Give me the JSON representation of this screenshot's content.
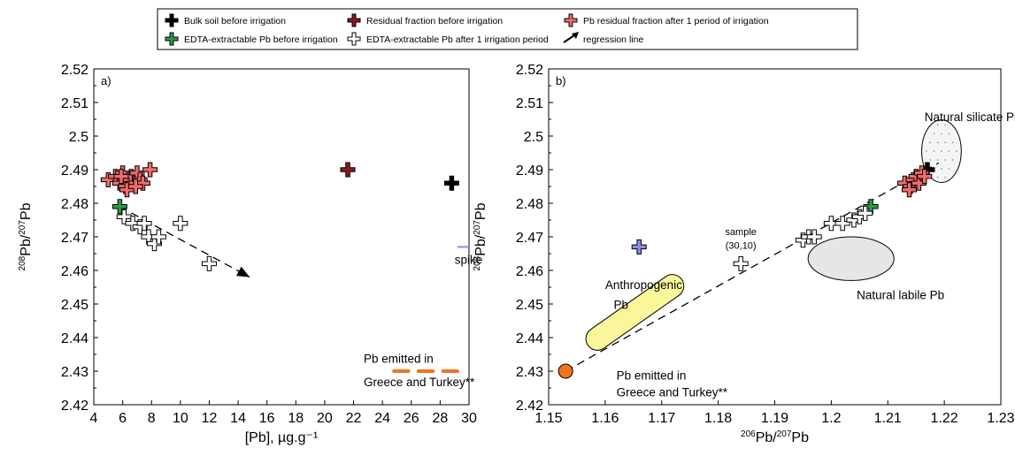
{
  "legend": {
    "items": [
      {
        "label": "Bulk soil before irrigation",
        "color": "#000000",
        "marker": "plus-filled"
      },
      {
        "label": "Residual fraction before irrigation",
        "color": "#8b1a1a",
        "marker": "plus-filled"
      },
      {
        "label": "Pb residual fraction after 1 period of irrigation",
        "color": "#f26b6b",
        "marker": "plus-filled"
      },
      {
        "label": "EDTA-extractable Pb before irrigation",
        "color": "#2e9a48",
        "marker": "plus-filled"
      },
      {
        "label": "EDTA-extractable Pb after 1 irrigation period",
        "color": "#ffffff",
        "marker": "plus-open"
      },
      {
        "label": "regression line",
        "color": "#000000",
        "marker": "arrow"
      }
    ]
  },
  "chart_data": [
    {
      "type": "scatter",
      "panel_label": "a)",
      "xlabel": "[Pb], µg.g⁻¹",
      "ylabel_parts": [
        "208",
        "Pb/",
        "207",
        "Pb"
      ],
      "xlim": [
        4,
        30
      ],
      "ylim": [
        2.42,
        2.52
      ],
      "xticks": [
        "4",
        "6",
        "8",
        "10",
        "12",
        "14",
        "16",
        "18",
        "20",
        "22",
        "24",
        "26",
        "28",
        "30"
      ],
      "yticks": [
        "2.42",
        "2.43",
        "2.44",
        "2.45",
        "2.46",
        "2.47",
        "2.48",
        "2.49",
        "2.5",
        "2.51",
        "2.52"
      ],
      "series": [
        {
          "legend_index": 0,
          "points": [
            [
              28.8,
              2.486
            ]
          ]
        },
        {
          "legend_index": 1,
          "points": [
            [
              21.6,
              2.49
            ]
          ]
        },
        {
          "legend_index": 2,
          "points": [
            [
              5.0,
              2.487
            ],
            [
              5.5,
              2.488
            ],
            [
              5.8,
              2.486
            ],
            [
              6.0,
              2.489
            ],
            [
              6.2,
              2.485
            ],
            [
              6.4,
              2.487
            ],
            [
              6.6,
              2.488
            ],
            [
              6.8,
              2.486
            ],
            [
              7.0,
              2.489
            ],
            [
              7.2,
              2.487
            ],
            [
              7.4,
              2.486
            ],
            [
              6.3,
              2.484
            ],
            [
              7.9,
              2.49
            ],
            [
              5.9,
              2.488
            ],
            [
              6.9,
              2.485
            ]
          ]
        },
        {
          "legend_index": 3,
          "points": [
            [
              5.8,
              2.479
            ]
          ]
        },
        {
          "legend_index": 4,
          "points": [
            [
              6.1,
              2.476
            ],
            [
              6.7,
              2.474
            ],
            [
              7.2,
              2.473
            ],
            [
              7.5,
              2.474
            ],
            [
              7.8,
              2.47
            ],
            [
              8.2,
              2.468
            ],
            [
              8.5,
              2.47
            ],
            [
              10.0,
              2.474
            ],
            [
              12.0,
              2.462
            ]
          ]
        }
      ],
      "regression": {
        "from": [
          5.8,
          2.479
        ],
        "to": [
          14.8,
          2.458
        ]
      },
      "annotations": [
        {
          "text": "spike",
          "x": 29.0,
          "y": 2.462
        },
        {
          "text": "Pb emitted in",
          "x": 22.7,
          "y": 2.4325
        },
        {
          "text": "Greece and Turkey**",
          "x": 22.7,
          "y": 2.4255
        }
      ],
      "spike_marker": {
        "x_from": 29.2,
        "x_to": 30,
        "y": 2.467,
        "color": "#8c8ce8"
      },
      "emitted_segments": {
        "color": "#f4731c",
        "y": 2.43,
        "segments": [
          [
            24.8,
            25.8
          ],
          [
            26.5,
            27.5
          ],
          [
            28.2,
            29.2
          ]
        ]
      }
    },
    {
      "type": "scatter",
      "panel_label": "b)",
      "xlabel_parts": [
        "206",
        "Pb/",
        "207",
        "Pb"
      ],
      "ylabel_parts": [
        "208",
        "Pb/",
        "207",
        "Pb"
      ],
      "xlim": [
        1.15,
        1.23
      ],
      "ylim": [
        2.42,
        2.52
      ],
      "xticks": [
        "1.15",
        "1.16",
        "1.17",
        "1.18",
        "1.19",
        "1.2",
        "1.21",
        "1.22",
        "1.23"
      ],
      "yticks": [
        "2.42",
        "2.43",
        "2.44",
        "2.45",
        "2.46",
        "2.47",
        "2.48",
        "2.49",
        "2.5",
        "2.51",
        "2.52"
      ],
      "series": [
        {
          "legend_index": 0,
          "points": [
            [
              1.217,
              2.49
            ]
          ]
        },
        {
          "legend_index": 2,
          "points": [
            [
              1.213,
              2.486
            ],
            [
              1.214,
              2.485
            ],
            [
              1.2145,
              2.487
            ],
            [
              1.215,
              2.488
            ],
            [
              1.2155,
              2.486
            ],
            [
              1.216,
              2.489
            ],
            [
              1.2165,
              2.488
            ],
            [
              1.2138,
              2.484
            ]
          ]
        },
        {
          "legend_index": 3,
          "points": [
            [
              1.207,
              2.479
            ]
          ]
        },
        {
          "legend_index": 4,
          "points": [
            [
              1.195,
              2.469
            ],
            [
              1.196,
              2.47
            ],
            [
              1.197,
              2.47
            ],
            [
              1.2,
              2.474
            ],
            [
              1.202,
              2.474
            ],
            [
              1.204,
              2.475
            ],
            [
              1.205,
              2.476
            ],
            [
              1.206,
              2.477
            ],
            [
              1.184,
              2.462
            ]
          ]
        },
        {
          "color": "#8c8ce8",
          "marker": "plus-filled",
          "points": [
            [
              1.166,
              2.467
            ]
          ]
        }
      ],
      "regression": {
        "from": [
          1.153,
          2.43
        ],
        "to": [
          1.219,
          2.492
        ],
        "style": "dashed"
      },
      "emitted_point": {
        "x": 1.153,
        "y": 2.43,
        "color": "#f4731c"
      },
      "regions": [
        {
          "name": "natural-silicate",
          "label": "Natural silicate Pb",
          "center": [
            1.2195,
            2.4955
          ],
          "rx": 0.0035,
          "ry": 0.0093,
          "fill": "#f4f4f4",
          "dotted": true
        },
        {
          "name": "natural-labile",
          "label": "Natural labile Pb",
          "center": [
            1.2035,
            2.4635
          ],
          "rx": 0.0076,
          "ry": 0.0065,
          "fill": "#e6e6e6"
        },
        {
          "name": "anthropogenic",
          "label_lines": [
            "Anthropogenic",
            "Pb"
          ],
          "from": [
            1.1585,
            2.4395
          ],
          "to": [
            1.172,
            2.4555
          ],
          "fill": "#f9f79a"
        }
      ],
      "annotations": [
        {
          "text": "Natural silicate Pb",
          "x": 1.2165,
          "y": 2.5045
        },
        {
          "text": "Natural labile Pb",
          "x": 1.2045,
          "y": 2.4515
        },
        {
          "text": "Anthropogenic",
          "x": 1.16,
          "y": 2.4545
        },
        {
          "text": "Pb",
          "x": 1.1615,
          "y": 2.4485
        },
        {
          "text": "sample",
          "x": 1.184,
          "y": 2.4705
        },
        {
          "text": "(30,10)",
          "x": 1.184,
          "y": 2.4665
        },
        {
          "text": "Pb emitted in",
          "x": 1.162,
          "y": 2.4275
        },
        {
          "text": "Greece and Turkey**",
          "x": 1.162,
          "y": 2.4225
        }
      ]
    }
  ]
}
